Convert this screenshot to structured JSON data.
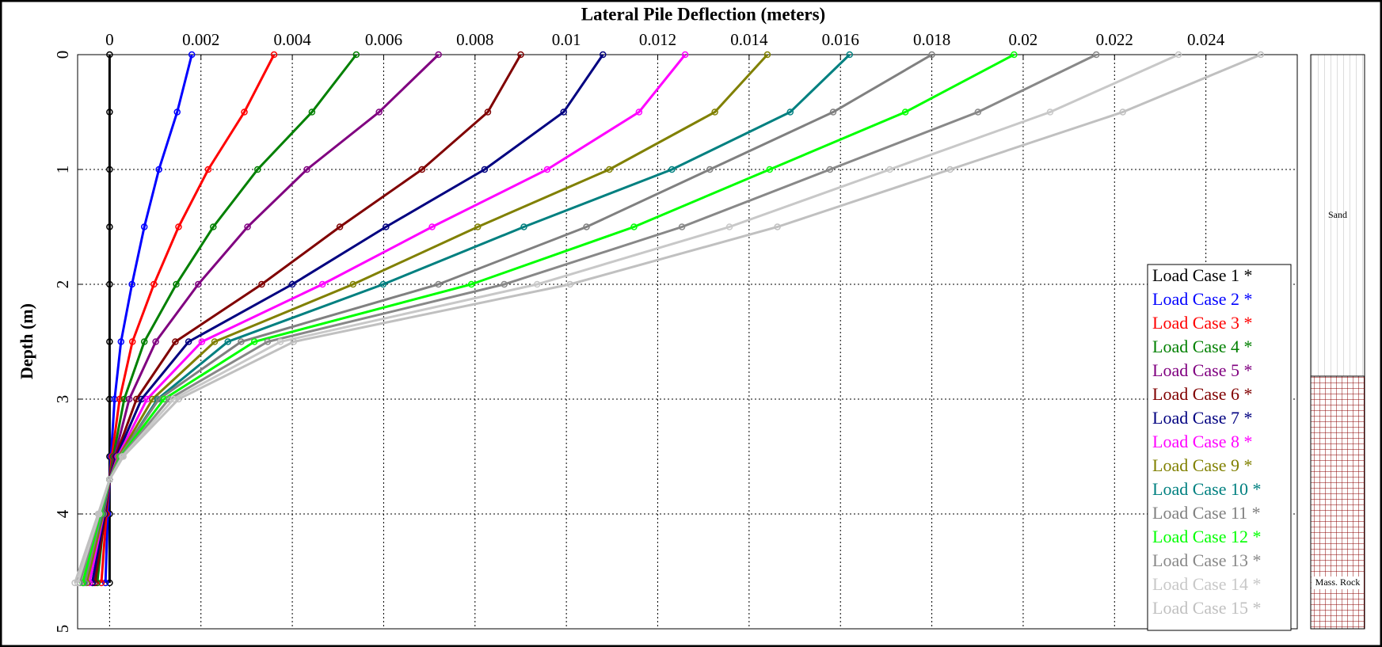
{
  "chart_data": {
    "type": "line",
    "title": "Lateral Pile Deflection (meters)",
    "y_label": "Depth (m)",
    "xlim": [
      -0.0007,
      0.026
    ],
    "ylim": [
      0,
      5
    ],
    "xticks": [
      0,
      0.002,
      0.004,
      0.006,
      0.008,
      0.01,
      0.012,
      0.014,
      0.016,
      0.018,
      0.02,
      0.022,
      0.024
    ],
    "yticks": [
      0,
      1,
      2,
      3,
      4,
      5
    ],
    "grid": true,
    "legend": "lower right",
    "depths": [
      0,
      0.5,
      1,
      1.5,
      2,
      2.5,
      3,
      3.5,
      3.7,
      4,
      4.6
    ],
    "series": [
      {
        "name": "Load Case 1 *",
        "color": "#000000",
        "values": [
          0,
          0,
          0,
          0,
          0,
          0,
          0,
          0,
          0,
          0,
          0
        ]
      },
      {
        "name": "Load Case 2 *",
        "color": "#0000ff",
        "values": [
          0.0018,
          0.00148,
          0.00108,
          0.00076,
          0.00049,
          0.00025,
          0.00011,
          3e-05,
          0,
          -4e-05,
          -9e-05
        ]
      },
      {
        "name": "Load Case 3 *",
        "color": "#ff0000",
        "values": [
          0.0036,
          0.00295,
          0.00216,
          0.00151,
          0.00097,
          0.0005,
          0.00022,
          5e-05,
          0,
          -7e-05,
          -0.00018
        ]
      },
      {
        "name": "Load Case 4 *",
        "color": "#008000",
        "values": [
          0.0054,
          0.00443,
          0.00324,
          0.00227,
          0.00146,
          0.00076,
          0.00032,
          8e-05,
          0,
          -0.00011,
          -0.00027
        ]
      },
      {
        "name": "Load Case 5 *",
        "color": "#800080",
        "values": [
          0.0072,
          0.0059,
          0.00432,
          0.00302,
          0.00194,
          0.00101,
          0.00043,
          0.00011,
          0,
          -0.00014,
          -0.00036
        ]
      },
      {
        "name": "Load Case 6 *",
        "color": "#800000",
        "values": [
          0.009,
          0.00828,
          0.00684,
          0.00504,
          0.00333,
          0.00144,
          0.00059,
          0.00013,
          0,
          -9e-05,
          -0.00032
        ]
      },
      {
        "name": "Load Case 7 *",
        "color": "#000080",
        "values": [
          0.0108,
          0.00994,
          0.00821,
          0.00605,
          0.004,
          0.00173,
          0.0007,
          0.00015,
          0,
          -0.00011,
          -0.00038
        ]
      },
      {
        "name": "Load Case 8 *",
        "color": "#ff00ff",
        "values": [
          0.0126,
          0.01159,
          0.00958,
          0.00706,
          0.00466,
          0.00202,
          0.00082,
          0.00018,
          0,
          -0.00013,
          -0.00044
        ]
      },
      {
        "name": "Load Case 9 *",
        "color": "#808000",
        "values": [
          0.0144,
          0.01325,
          0.01094,
          0.00806,
          0.00533,
          0.0023,
          0.00094,
          0.0002,
          0,
          -0.00014,
          -0.0005
        ]
      },
      {
        "name": "Load Case 10 *",
        "color": "#008080",
        "values": [
          0.0162,
          0.0149,
          0.01231,
          0.00907,
          0.00599,
          0.00259,
          0.00105,
          0.00023,
          0,
          -0.00016,
          -0.00057
        ]
      },
      {
        "name": "Load Case 11 *",
        "color": "#808080",
        "values": [
          0.018,
          0.01584,
          0.01314,
          0.01044,
          0.0072,
          0.00288,
          0.00108,
          0.00022,
          0,
          -0.00018,
          -0.00054
        ]
      },
      {
        "name": "Load Case 12 *",
        "color": "#00ff00",
        "values": [
          0.0198,
          0.01742,
          0.01445,
          0.01148,
          0.00792,
          0.00317,
          0.00119,
          0.00024,
          0,
          -0.0002,
          -0.00059
        ]
      },
      {
        "name": "Load Case 13 *",
        "color": "#888888",
        "values": [
          0.0216,
          0.01901,
          0.01577,
          0.01253,
          0.00864,
          0.00346,
          0.0013,
          0.00026,
          0,
          -0.00022,
          -0.00065
        ]
      },
      {
        "name": "Load Case 14 *",
        "color": "#c8c8c8",
        "values": [
          0.0234,
          0.02059,
          0.01708,
          0.01357,
          0.00936,
          0.00374,
          0.0014,
          0.00028,
          0,
          -0.00023,
          -0.0007
        ]
      },
      {
        "name": "Load Case 15 *",
        "color": "#c0c0c0",
        "values": [
          0.0252,
          0.02218,
          0.0184,
          0.01462,
          0.01008,
          0.00403,
          0.00151,
          0.0003,
          0,
          -0.00025,
          -0.00076
        ]
      }
    ],
    "soil_layers": [
      {
        "label": "Sand",
        "top": 0,
        "bottom": 2.8
      },
      {
        "label": "Mass. Rock",
        "top": 2.8,
        "bottom": 5
      }
    ]
  }
}
